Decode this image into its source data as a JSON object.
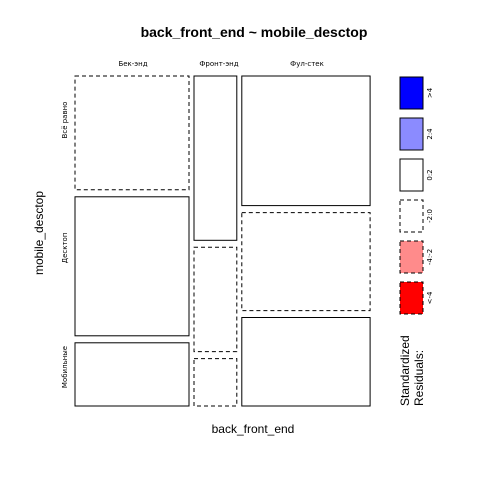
{
  "chart_data": {
    "type": "mosaic",
    "title": "back_front_end ~ mobile_desctop",
    "xlabel": "back_front_end",
    "ylabel": "mobile_desctop",
    "x_categories": [
      "Бек-энд",
      "Фронт-энд",
      "Фул-стек"
    ],
    "y_categories": [
      "Всё равно",
      "Десктоп",
      "Мобильные"
    ],
    "cells": [
      {
        "x": "Бек-энд",
        "y": "Всё равно",
        "proportion": 0.36,
        "residual_class": "-2:0"
      },
      {
        "x": "Бек-энд",
        "y": "Десктоп",
        "proportion": 0.44,
        "residual_class": "0:2"
      },
      {
        "x": "Бек-энд",
        "y": "Мобильные",
        "proportion": 0.2,
        "residual_class": "0:2"
      },
      {
        "x": "Фронт-энд",
        "y": "Всё равно",
        "proportion": 0.52,
        "residual_class": "0:2"
      },
      {
        "x": "Фронт-энд",
        "y": "Десктоп",
        "proportion": 0.33,
        "residual_class": "-2:0"
      },
      {
        "x": "Фронт-энд",
        "y": "Мобильные",
        "proportion": 0.15,
        "residual_class": "-2:0"
      },
      {
        "x": "Фул-стек",
        "y": "Всё равно",
        "proportion": 0.41,
        "residual_class": "0:2"
      },
      {
        "x": "Фул-стек",
        "y": "Десктоп",
        "proportion": 0.31,
        "residual_class": "-2:0"
      },
      {
        "x": "Фул-стек",
        "y": "Мобильные",
        "proportion": 0.28,
        "residual_class": "0:2"
      }
    ],
    "x_proportions": [
      0.4,
      0.15,
      0.45
    ],
    "legend": {
      "title_line1": "Standardized",
      "title_line2": "Residuals:",
      "entries": [
        {
          "label": ">4",
          "color": "#0000ff",
          "dashed": false
        },
        {
          "label": "2:4",
          "color": "#8b8bff",
          "dashed": false
        },
        {
          "label": "0:2",
          "color": "#ffffff",
          "dashed": false
        },
        {
          "label": "-2:0",
          "color": "#ffffff",
          "dashed": true
        },
        {
          "label": "-4:-2",
          "color": "#ff8b8b",
          "dashed": true
        },
        {
          "label": "<-4",
          "color": "#ff0000",
          "dashed": true
        }
      ]
    }
  }
}
